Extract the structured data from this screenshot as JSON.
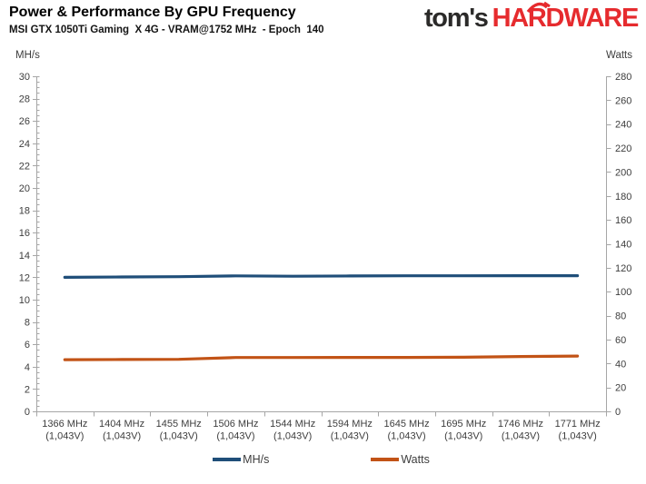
{
  "logo": {
    "prefix": "tom's",
    "suffix": "HARDWARE",
    "prefix_color": "#2b2a29",
    "suffix_color": "#e62b2e"
  },
  "chart_data": {
    "type": "line",
    "title": "Power & Performance By GPU Frequency",
    "subtitle": "MSI GTX 1050Ti Gaming  X 4G - VRAM@1752 MHz  - Epoch  140",
    "categories": [
      {
        "mhz": "1366 MHz",
        "volt": "(1,043V)"
      },
      {
        "mhz": "1404 MHz",
        "volt": "(1,043V)"
      },
      {
        "mhz": "1455 MHz",
        "volt": "(1,043V)"
      },
      {
        "mhz": "1506 MHz",
        "volt": "(1,043V)"
      },
      {
        "mhz": "1544 MHz",
        "volt": "(1,043V)"
      },
      {
        "mhz": "1594 MHz",
        "volt": "(1,043V)"
      },
      {
        "mhz": "1645 MHz",
        "volt": "(1,043V)"
      },
      {
        "mhz": "1695 MHz",
        "volt": "(1,043V)"
      },
      {
        "mhz": "1746 MHz",
        "volt": "(1,043V)"
      },
      {
        "mhz": "1771 MHz",
        "volt": "(1,043V)"
      }
    ],
    "left_axis": {
      "label": "MH/s",
      "min": 0,
      "max": 30,
      "step": 2,
      "minor_step": 0.5
    },
    "right_axis": {
      "label": "Watts",
      "min": 0,
      "max": 280,
      "step": 20
    },
    "series": [
      {
        "name": "MH/s",
        "axis": "left",
        "color": "#1f4e79",
        "values": [
          12.0,
          12.03,
          12.06,
          12.13,
          12.1,
          12.12,
          12.14,
          12.14,
          12.15,
          12.15
        ]
      },
      {
        "name": "Watts",
        "axis": "right",
        "color": "#c25316",
        "values": [
          43.2,
          43.3,
          43.5,
          45.0,
          45.0,
          45.1,
          45.1,
          45.2,
          45.8,
          46.2
        ]
      }
    ],
    "legend_position": "bottom",
    "grid": false,
    "axis_color": "#a6a6a6",
    "text_color": "#3d3d3d"
  }
}
